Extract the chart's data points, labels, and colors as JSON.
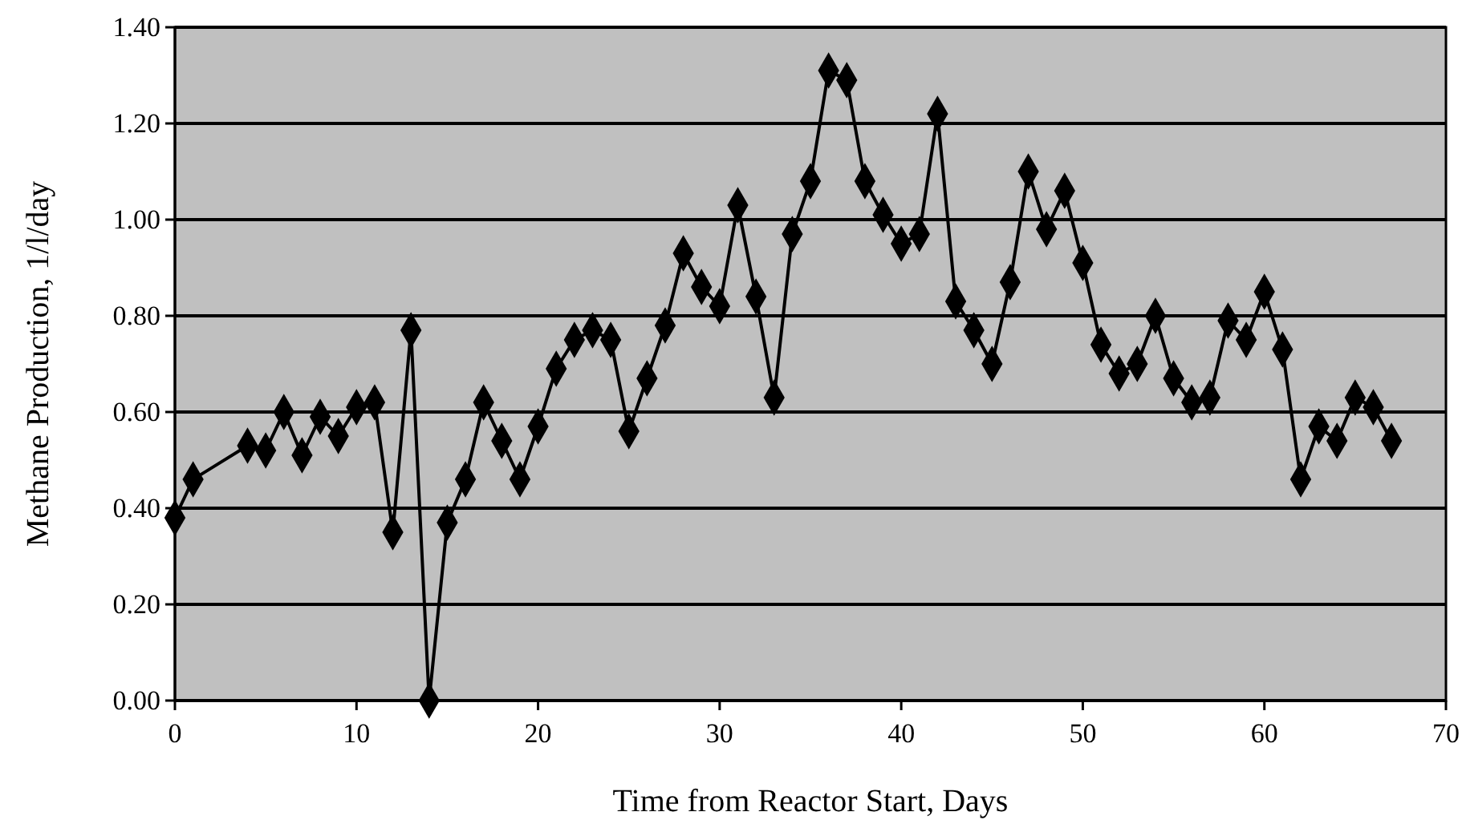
{
  "chart_data": {
    "type": "line",
    "xlabel": "Time from Reactor Start, Days",
    "ylabel": "Methane Production, 1/l/day",
    "x": [
      0,
      1,
      4,
      5,
      6,
      7,
      8,
      9,
      10,
      11,
      12,
      13,
      14,
      15,
      16,
      17,
      18,
      19,
      20,
      21,
      22,
      23,
      24,
      25,
      26,
      27,
      28,
      29,
      30,
      31,
      32,
      33,
      34,
      35,
      36,
      37,
      38,
      39,
      40,
      41,
      42,
      43,
      44,
      45,
      46,
      47,
      48,
      49,
      50,
      51,
      52,
      53,
      54,
      55,
      56,
      57,
      58,
      59,
      60,
      61,
      62,
      63,
      64,
      65,
      66,
      67
    ],
    "series": [
      {
        "color": "#000000",
        "values": [
          0.38,
          0.46,
          0.53,
          0.52,
          0.6,
          0.51,
          0.59,
          0.55,
          0.61,
          0.62,
          0.35,
          0.77,
          0,
          0.37,
          0.46,
          0.62,
          0.54,
          0.46,
          0.57,
          0.69,
          0.75,
          0.77,
          0.75,
          0.56,
          0.67,
          0.78,
          0.93,
          0.86,
          0.82,
          1.03,
          0.84,
          0.63,
          0.97,
          1.08,
          1.31,
          1.29,
          1.08,
          1.01,
          0.95,
          0.97,
          1.22,
          0.83,
          0.77,
          0.7,
          0.87,
          1.1,
          0.98,
          1.06,
          0.91,
          0.74,
          0.68,
          0.7,
          0.8,
          0.67,
          0.62,
          0.63,
          0.79,
          0.75,
          0.85,
          0.73,
          0.46,
          0.57,
          0.54,
          0.63,
          0.61,
          0.54
        ]
      }
    ],
    "xlim": [
      0,
      70
    ],
    "xticks": [
      0,
      10,
      20,
      30,
      40,
      50,
      60,
      70
    ],
    "ylim": [
      0,
      1.4
    ],
    "yticks": [
      {
        "value": 0,
        "label": "0.00"
      },
      {
        "value": 0.2,
        "label": "0.20"
      },
      {
        "value": 0.4,
        "label": "0.40"
      },
      {
        "value": 0.6,
        "label": "0.60"
      },
      {
        "value": 0.8,
        "label": "0.80"
      },
      {
        "value": 1,
        "label": "1.00"
      },
      {
        "value": 1.2,
        "label": "1.20"
      },
      {
        "value": 1.4,
        "label": "1.40"
      }
    ],
    "grid": "y",
    "marker": "diamond",
    "line_style": "solid"
  }
}
